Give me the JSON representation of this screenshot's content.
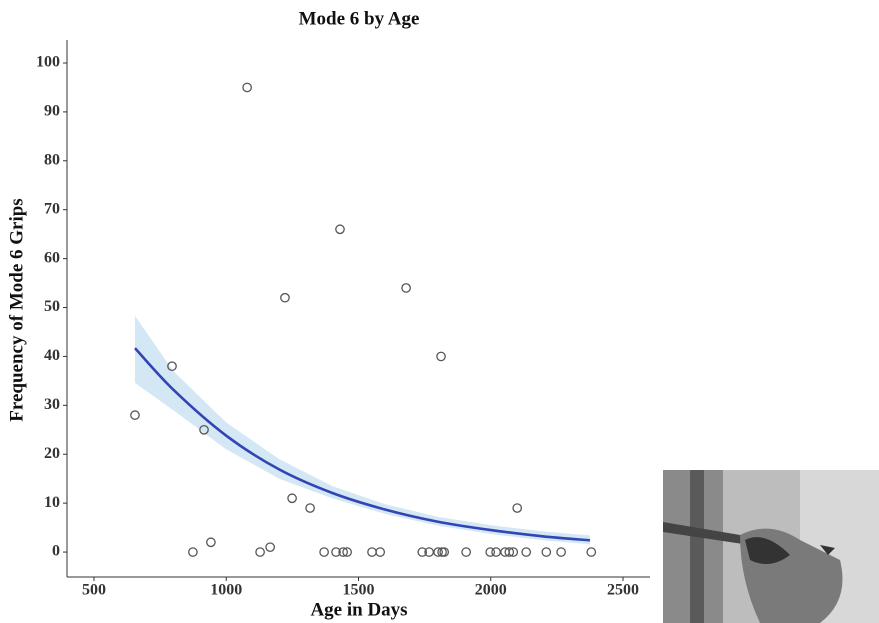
{
  "chart_data": {
    "type": "scatter",
    "title": "Mode 6 by Age",
    "x_label": "Age in Days",
    "y_label": "Frequency of Mode 6 Grips",
    "xlim": [
      398,
      2602
    ],
    "ylim": [
      -5.1,
      104.7
    ],
    "xticks": [
      500,
      1000,
      1500,
      2000,
      2500
    ],
    "yticks": [
      0,
      10,
      20,
      30,
      40,
      50,
      60,
      70,
      80,
      90,
      100
    ],
    "points": {
      "color": "#555555",
      "x": [
        655,
        795,
        874,
        916,
        942,
        1079,
        1128,
        1166,
        1222,
        1249,
        1317,
        1370,
        1415,
        1430,
        1442,
        1457,
        1551,
        1582,
        1680,
        1741,
        1767,
        1801,
        1812,
        1816,
        1824,
        1907,
        1998,
        2020,
        2054,
        2070,
        2085,
        2100,
        2134,
        2210,
        2266,
        2380
      ],
      "y": [
        28,
        38,
        0,
        25,
        2,
        95,
        0,
        1,
        52,
        11,
        9,
        0,
        0,
        66,
        0,
        0,
        0,
        0,
        54,
        0,
        0,
        0,
        40,
        0,
        0,
        0,
        0,
        0,
        0,
        0,
        0,
        9,
        0,
        0,
        0,
        0
      ]
    },
    "fit": {
      "color": "#3344b4",
      "band_color": "#d4e7f5",
      "x": [
        655,
        800,
        1000,
        1200,
        1400,
        1600,
        1800,
        2000,
        2200,
        2375
      ],
      "y": [
        41.7,
        33.2,
        23.8,
        16.9,
        12.1,
        8.7,
        6.2,
        4.5,
        3.2,
        2.4
      ],
      "lower": [
        34.6,
        29,
        21,
        15,
        11,
        7.8,
        5.4,
        3.7,
        2.4,
        1.6
      ],
      "upper": [
        48.3,
        37,
        26.5,
        19,
        13.5,
        9.8,
        7.2,
        5.5,
        4.2,
        3.4
      ]
    }
  }
}
